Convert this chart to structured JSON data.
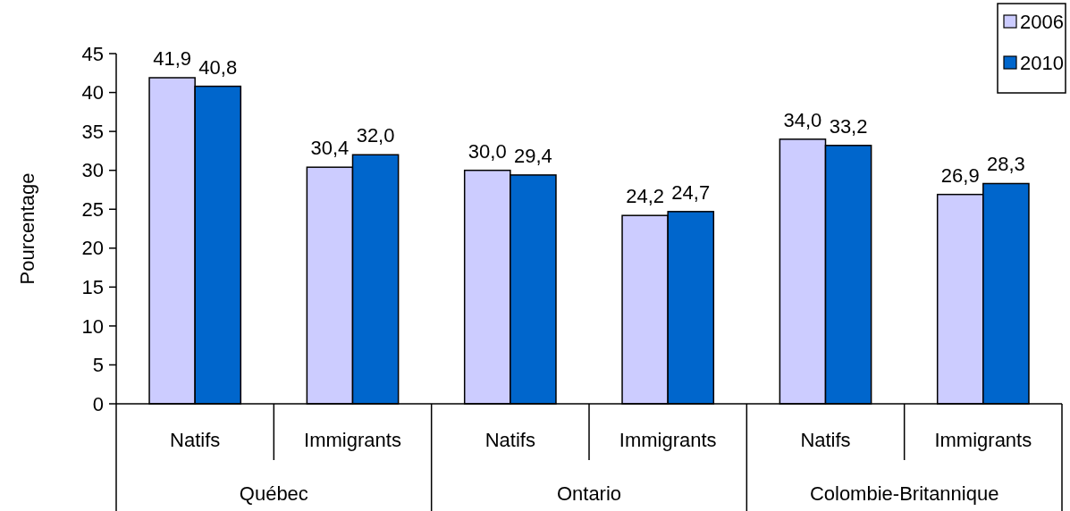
{
  "chart_data": {
    "type": "bar",
    "ylabel": "Pourcentage",
    "categories": [
      "Natifs",
      "Immigrants",
      "Natifs",
      "Immigrants",
      "Natifs",
      "Immigrants"
    ],
    "annotations": [
      "Québec",
      "Ontario",
      "Colombie-Britannique"
    ],
    "series": [
      {
        "name": "2006",
        "color": "#ccccff",
        "values": [
          41.9,
          30.4,
          30.0,
          24.2,
          34.0,
          26.9
        ],
        "value_labels": [
          "41,9",
          "30,4",
          "30,0",
          "24,2",
          "34,0",
          "26,9"
        ]
      },
      {
        "name": "2010",
        "color": "#0066cc",
        "values": [
          40.8,
          32.0,
          29.4,
          24.7,
          33.2,
          28.3
        ],
        "value_labels": [
          "40,8",
          "32,0",
          "29,4",
          "24,7",
          "33,2",
          "28,3"
        ]
      }
    ],
    "ylim": [
      0,
      45
    ],
    "yticks": [
      0,
      5,
      10,
      15,
      20,
      25,
      30,
      35,
      40,
      45
    ],
    "grid": false,
    "legend": "top right"
  }
}
